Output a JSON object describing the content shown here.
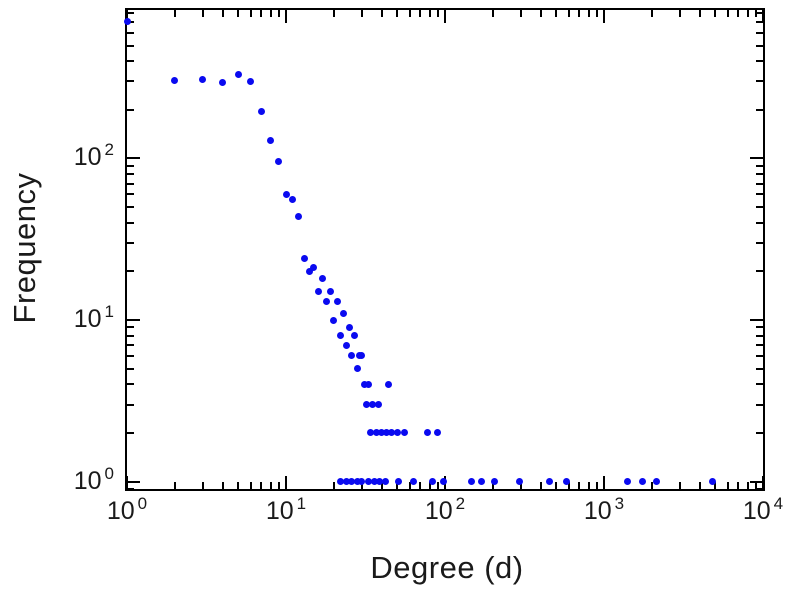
{
  "chart_data": {
    "type": "scatter",
    "title": "",
    "xlabel": "Degree (d)",
    "ylabel": "Frequency",
    "x_scale": "log",
    "y_scale": "log",
    "xlim": [
      1,
      10000
    ],
    "ylim": [
      0.9,
      830
    ],
    "grid": false,
    "legend": "none",
    "marker_color": "#0a0af0",
    "axis_color": "#000000",
    "text_color": "#1a1a1a",
    "x_ticks": [
      {
        "value": 1,
        "base": "10",
        "exp": "0"
      },
      {
        "value": 10,
        "base": "10",
        "exp": "1"
      },
      {
        "value": 100,
        "base": "10",
        "exp": "2"
      },
      {
        "value": 1000,
        "base": "10",
        "exp": "3"
      },
      {
        "value": 10000,
        "base": "10",
        "exp": "4"
      }
    ],
    "y_ticks": [
      {
        "value": 1,
        "base": "10",
        "exp": "0"
      },
      {
        "value": 10,
        "base": "10",
        "exp": "1"
      },
      {
        "value": 100,
        "base": "10",
        "exp": "2"
      }
    ],
    "points": [
      [
        1,
        700
      ],
      [
        2,
        305
      ],
      [
        3,
        310
      ],
      [
        4,
        295
      ],
      [
        5,
        330
      ],
      [
        6,
        300
      ],
      [
        7,
        195
      ],
      [
        8,
        130
      ],
      [
        9,
        96
      ],
      [
        10,
        60
      ],
      [
        11,
        56
      ],
      [
        12,
        44
      ],
      [
        13,
        24
      ],
      [
        14,
        20
      ],
      [
        15,
        21
      ],
      [
        16,
        15
      ],
      [
        17,
        18
      ],
      [
        18,
        13
      ],
      [
        19,
        15
      ],
      [
        20,
        10
      ],
      [
        21,
        13
      ],
      [
        22,
        8
      ],
      [
        23,
        11
      ],
      [
        24,
        7
      ],
      [
        25,
        9
      ],
      [
        26,
        6
      ],
      [
        27,
        8
      ],
      [
        28,
        5
      ],
      [
        29,
        6
      ],
      [
        30,
        6
      ],
      [
        31,
        4
      ],
      [
        32,
        3
      ],
      [
        33,
        4
      ],
      [
        35,
        3
      ],
      [
        38,
        3
      ],
      [
        44,
        4
      ],
      [
        34,
        2
      ],
      [
        37,
        2
      ],
      [
        40,
        2
      ],
      [
        43,
        2
      ],
      [
        46,
        2
      ],
      [
        50,
        2
      ],
      [
        56,
        2
      ],
      [
        78,
        2
      ],
      [
        90,
        2
      ],
      [
        22,
        1
      ],
      [
        24,
        1
      ],
      [
        26,
        1
      ],
      [
        28,
        1
      ],
      [
        30,
        1
      ],
      [
        33,
        1
      ],
      [
        36,
        1
      ],
      [
        39,
        1
      ],
      [
        42,
        1
      ],
      [
        51,
        1
      ],
      [
        63,
        1
      ],
      [
        83,
        1
      ],
      [
        98,
        1
      ],
      [
        147,
        1
      ],
      [
        170,
        1
      ],
      [
        205,
        1
      ],
      [
        295,
        1
      ],
      [
        455,
        1
      ],
      [
        580,
        1
      ],
      [
        1400,
        1
      ],
      [
        1750,
        1
      ],
      [
        2150,
        1
      ],
      [
        4800,
        1
      ]
    ]
  }
}
